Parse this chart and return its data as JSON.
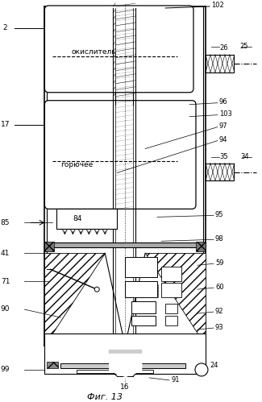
{
  "title": "Фиг. 13",
  "bg_color": "#ffffff",
  "line_color": "#000000",
  "gray_fill": "#888888",
  "light_gray": "#cccccc",
  "hatch_color": "#555555"
}
